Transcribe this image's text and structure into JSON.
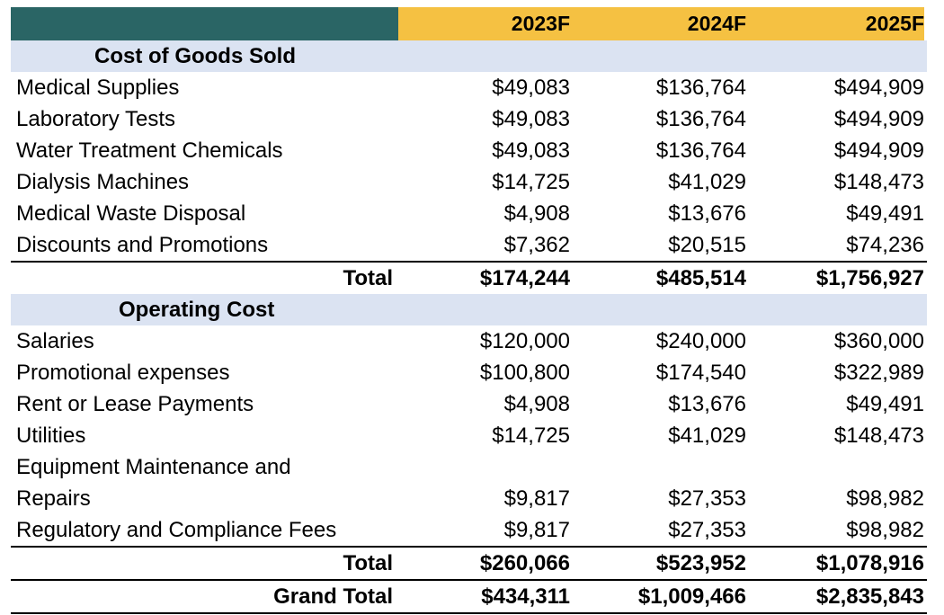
{
  "header": {
    "years": [
      "2023F",
      "2024F",
      "2025F"
    ]
  },
  "cogs": {
    "title": "Cost of Goods Sold",
    "rows": [
      {
        "label": "Medical Supplies",
        "values": [
          "$49,083",
          "$136,764",
          "$494,909"
        ]
      },
      {
        "label": "Laboratory Tests",
        "values": [
          "$49,083",
          "$136,764",
          "$494,909"
        ]
      },
      {
        "label": "Water Treatment Chemicals",
        "values": [
          "$49,083",
          "$136,764",
          "$494,909"
        ]
      },
      {
        "label": "Dialysis Machines",
        "values": [
          "$14,725",
          "$41,029",
          "$148,473"
        ]
      },
      {
        "label": "Medical Waste Disposal",
        "values": [
          "$4,908",
          "$13,676",
          "$49,491"
        ]
      },
      {
        "label": "Discounts and Promotions",
        "values": [
          "$7,362",
          "$20,515",
          "$74,236"
        ]
      }
    ],
    "total": {
      "label": "Total",
      "values": [
        "$174,244",
        "$485,514",
        "$1,756,927"
      ]
    }
  },
  "opex": {
    "title": "Operating Cost",
    "rows": [
      {
        "label": "Salaries",
        "values": [
          "$120,000",
          "$240,000",
          "$360,000"
        ]
      },
      {
        "label": "Promotional expenses",
        "values": [
          "$100,800",
          "$174,540",
          "$322,989"
        ]
      },
      {
        "label": "Rent or Lease Payments",
        "values": [
          "$4,908",
          "$13,676",
          "$49,491"
        ]
      },
      {
        "label": "Utilities",
        "values": [
          "$14,725",
          "$41,029",
          "$148,473"
        ]
      },
      {
        "label": "Equipment Maintenance and Repairs",
        "values": [
          "$9,817",
          "$27,353",
          "$98,982"
        ]
      },
      {
        "label": "Regulatory and Compliance Fees",
        "values": [
          "$9,817",
          "$27,353",
          "$98,982"
        ]
      }
    ],
    "total": {
      "label": "Total",
      "values": [
        "$260,066",
        "$523,952",
        "$1,078,916"
      ]
    }
  },
  "grand_total": {
    "label": "Grand Total",
    "values": [
      "$434,311",
      "$1,009,466",
      "$2,835,843"
    ]
  },
  "colors": {
    "header_teal": "#2a6565",
    "header_yellow": "#f5c142",
    "section_band": "#dbe3f2"
  }
}
